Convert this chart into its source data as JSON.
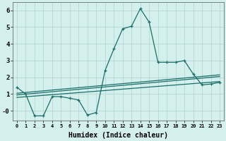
{
  "xlabel": "Humidex (Indice chaleur)",
  "ylabel": "",
  "background_color": "#d4f0ec",
  "grid_color": "#b8d8d4",
  "line_color": "#1a6e6a",
  "xlim": [
    -0.5,
    23.5
  ],
  "ylim": [
    -0.6,
    6.5
  ],
  "xticks": [
    0,
    1,
    2,
    3,
    4,
    5,
    6,
    7,
    8,
    9,
    10,
    11,
    12,
    13,
    14,
    15,
    16,
    17,
    18,
    19,
    20,
    21,
    22,
    23
  ],
  "yticks": [
    0,
    1,
    2,
    3,
    4,
    5,
    6
  ],
  "ytick_labels": [
    "-0",
    "1",
    "2",
    "3",
    "4",
    "5",
    "6"
  ],
  "series": [
    {
      "x": [
        0,
        1,
        2,
        3,
        4,
        5,
        6,
        7,
        8,
        9,
        10,
        11,
        12,
        13,
        14,
        15,
        16,
        17,
        18,
        19,
        20,
        21,
        22,
        23
      ],
      "y": [
        1.4,
        1.0,
        -0.3,
        -0.3,
        0.85,
        0.85,
        0.75,
        0.65,
        -0.25,
        -0.1,
        2.4,
        3.7,
        4.9,
        5.05,
        6.1,
        5.3,
        2.9,
        2.9,
        2.9,
        3.0,
        2.2,
        1.55,
        1.6,
        1.7
      ],
      "marker": true
    },
    {
      "x": [
        0,
        23
      ],
      "y": [
        1.05,
        2.15
      ],
      "marker": false
    },
    {
      "x": [
        0,
        23
      ],
      "y": [
        0.95,
        2.05
      ],
      "marker": false
    },
    {
      "x": [
        0,
        23
      ],
      "y": [
        0.8,
        1.75
      ],
      "marker": false
    }
  ]
}
